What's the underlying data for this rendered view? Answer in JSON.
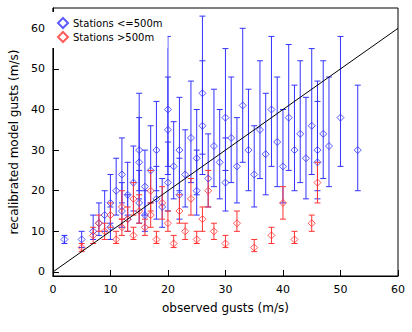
{
  "chart_data": {
    "type": "scatter",
    "xlabel": "observed gusts (m/s)",
    "ylabel": "recalibrated model gusts (m/s)",
    "xlim": [
      0,
      60
    ],
    "ylim": [
      -1,
      65
    ],
    "xticks": [
      0,
      10,
      20,
      30,
      40,
      50,
      60
    ],
    "yticks": [
      0,
      10,
      20,
      30,
      40,
      50,
      60
    ],
    "legend": "upper left",
    "grid": false,
    "series": [
      {
        "name": "Stations <=500m",
        "color": "#3333ff",
        "marker": "diamond",
        "x": [
          2,
          5,
          7,
          8,
          9,
          10,
          10,
          11,
          12,
          12,
          13,
          13,
          14,
          15,
          15,
          16,
          16,
          17,
          18,
          18,
          19,
          20,
          20,
          21,
          22,
          22,
          23,
          24,
          25,
          25,
          26,
          27,
          28,
          29,
          30,
          30,
          31,
          32,
          33,
          34,
          35,
          36,
          37,
          38,
          39,
          40,
          41,
          42,
          43,
          44,
          45,
          46,
          47,
          48,
          50,
          53,
          46,
          26,
          20,
          15
        ],
        "values": [
          8,
          8,
          10,
          12,
          14,
          11,
          17,
          20,
          15,
          24,
          13,
          19,
          22,
          17,
          27,
          14,
          21,
          25,
          18,
          30,
          16,
          22,
          35,
          26,
          19,
          30,
          24,
          33,
          20,
          28,
          36,
          23,
          31,
          27,
          38,
          22,
          33,
          26,
          41,
          30,
          24,
          35,
          29,
          40,
          32,
          26,
          38,
          30,
          34,
          28,
          36,
          30,
          34,
          31,
          38,
          30,
          27,
          44,
          40,
          30
        ],
        "err_low": [
          7,
          6,
          8,
          9,
          10,
          8,
          12,
          14,
          11,
          17,
          10,
          14,
          15,
          12,
          18,
          10,
          14,
          17,
          13,
          20,
          11,
          15,
          24,
          18,
          13,
          20,
          16,
          22,
          14,
          19,
          24,
          16,
          21,
          18,
          25,
          15,
          22,
          17,
          27,
          20,
          16,
          23,
          19,
          26,
          21,
          17,
          25,
          20,
          22,
          18,
          24,
          20,
          23,
          21,
          26,
          20,
          18,
          29,
          26,
          20
        ],
        "err_high": [
          9,
          10,
          14,
          17,
          20,
          16,
          24,
          28,
          22,
          33,
          19,
          27,
          31,
          25,
          38,
          20,
          30,
          36,
          26,
          42,
          23,
          32,
          48,
          37,
          28,
          43,
          35,
          47,
          30,
          40,
          52,
          34,
          45,
          40,
          55,
          33,
          48,
          38,
          60,
          45,
          36,
          52,
          44,
          58,
          48,
          40,
          56,
          46,
          52,
          43,
          55,
          47,
          52,
          48,
          58,
          46,
          42,
          63,
          58,
          44
        ]
      },
      {
        "name": "Stations >500m",
        "color": "#ff3333",
        "marker": "diamond",
        "x": [
          5,
          7,
          8,
          9,
          10,
          11,
          12,
          12,
          13,
          14,
          14,
          15,
          16,
          17,
          17,
          18,
          19,
          20,
          21,
          22,
          23,
          24,
          25,
          26,
          27,
          28,
          30,
          32,
          35,
          38,
          40,
          42,
          45,
          46
        ],
        "values": [
          6,
          9,
          12,
          10,
          14,
          8,
          16,
          11,
          13,
          18,
          9,
          15,
          11,
          20,
          14,
          8,
          17,
          12,
          7,
          15,
          10,
          18,
          8,
          13,
          20,
          10,
          7,
          12,
          6,
          9,
          17,
          8,
          12,
          22
        ],
        "err_low": [
          5,
          7,
          10,
          8,
          11,
          7,
          13,
          9,
          10,
          14,
          8,
          12,
          9,
          15,
          11,
          7,
          13,
          10,
          6,
          12,
          8,
          14,
          7,
          10,
          16,
          8,
          6,
          10,
          5,
          7,
          13,
          7,
          10,
          17
        ],
        "err_high": [
          7,
          11,
          14,
          12,
          17,
          10,
          20,
          13,
          16,
          22,
          11,
          19,
          13,
          25,
          17,
          10,
          21,
          15,
          9,
          19,
          12,
          23,
          10,
          16,
          25,
          12,
          9,
          15,
          8,
          11,
          21,
          10,
          14,
          27
        ]
      },
      {
        "type": "line",
        "color": "#000000",
        "x": [
          0,
          60
        ],
        "values": [
          0,
          60
        ]
      }
    ]
  }
}
